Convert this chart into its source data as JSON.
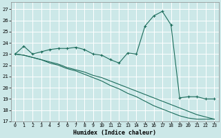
{
  "xlabel": "Humidex (Indice chaleur)",
  "bg_color": "#cce8e8",
  "grid_color": "#ffffff",
  "line_color": "#1a6b5a",
  "xlim": [
    -0.5,
    23.5
  ],
  "ylim": [
    17,
    27.6
  ],
  "yticks": [
    17,
    18,
    19,
    20,
    21,
    22,
    23,
    24,
    25,
    26,
    27
  ],
  "xticks": [
    0,
    1,
    2,
    3,
    4,
    5,
    6,
    7,
    8,
    9,
    10,
    11,
    12,
    13,
    14,
    15,
    16,
    17,
    18,
    19,
    20,
    21,
    22,
    23
  ],
  "series1_x": [
    0,
    1,
    2,
    3,
    4,
    5,
    6,
    7,
    8,
    9,
    10,
    11,
    12,
    13,
    14,
    15,
    16,
    17,
    18,
    19,
    20,
    21,
    22,
    23
  ],
  "series1_y": [
    23.0,
    23.7,
    23.0,
    23.2,
    23.4,
    23.5,
    23.5,
    23.6,
    23.4,
    23.0,
    22.9,
    22.5,
    22.2,
    23.1,
    23.0,
    25.5,
    26.4,
    26.8,
    25.6,
    19.1,
    19.2,
    19.2,
    19.0,
    19.0
  ],
  "series2_x": [
    0,
    1,
    2,
    3,
    4,
    5,
    6,
    7,
    8,
    9,
    10,
    11,
    12,
    13,
    14,
    15,
    16,
    17,
    18,
    19,
    20,
    21,
    22,
    23
  ],
  "series2_y": [
    23.0,
    22.9,
    22.7,
    22.5,
    22.3,
    22.1,
    21.8,
    21.6,
    21.4,
    21.1,
    20.9,
    20.6,
    20.3,
    20.0,
    19.7,
    19.4,
    19.1,
    18.8,
    18.5,
    18.2,
    17.9,
    17.6,
    17.4,
    17.2
  ],
  "series3_x": [
    0,
    1,
    2,
    3,
    4,
    5,
    6,
    7,
    8,
    9,
    10,
    11,
    12,
    13,
    14,
    15,
    16,
    17,
    18,
    19,
    20,
    21,
    22,
    23
  ],
  "series3_y": [
    23.0,
    22.9,
    22.7,
    22.5,
    22.2,
    22.0,
    21.7,
    21.5,
    21.2,
    20.9,
    20.6,
    20.2,
    19.9,
    19.5,
    19.2,
    18.8,
    18.4,
    18.1,
    17.8,
    17.5,
    17.3,
    17.2,
    17.2,
    17.2
  ]
}
